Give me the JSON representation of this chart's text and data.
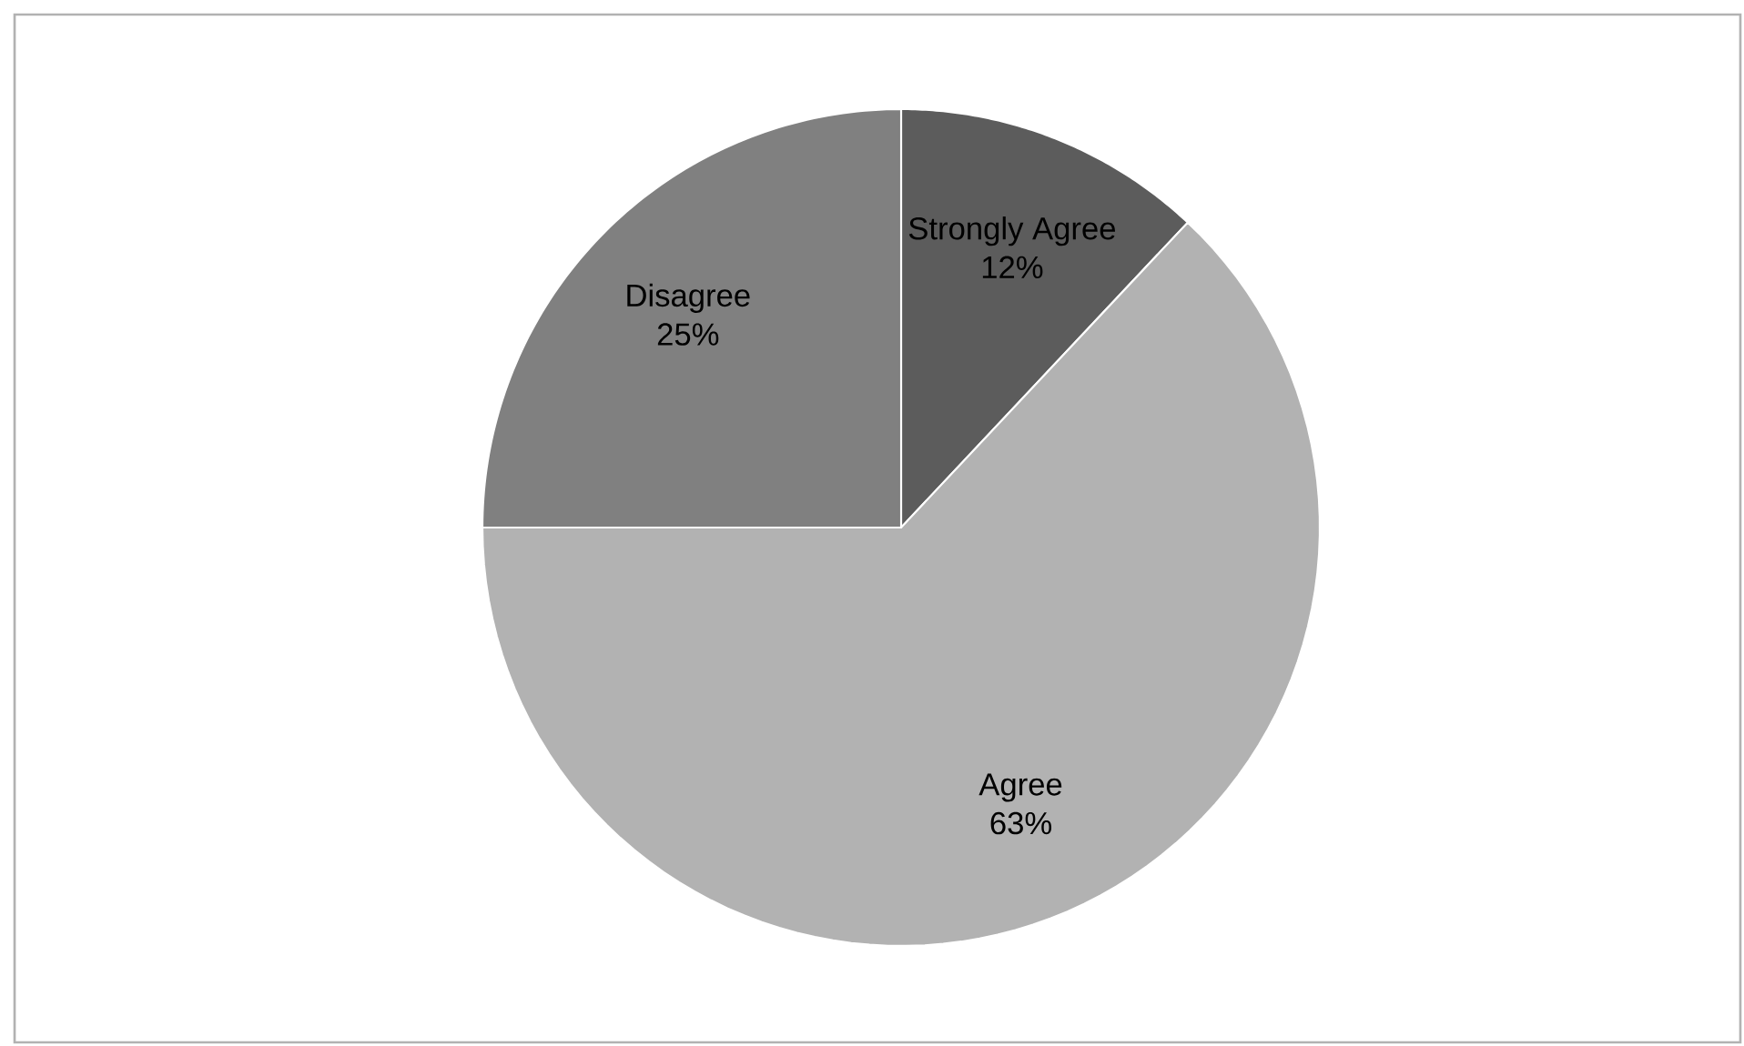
{
  "chart_data": {
    "type": "pie",
    "categories": [
      "Strongly Agree",
      "Agree",
      "Disagree"
    ],
    "values": [
      12,
      63,
      25
    ],
    "colors": [
      "#5c5c5c",
      "#b2b2b2",
      "#808080"
    ],
    "value_labels": [
      "12%",
      "63%",
      "25%"
    ]
  }
}
